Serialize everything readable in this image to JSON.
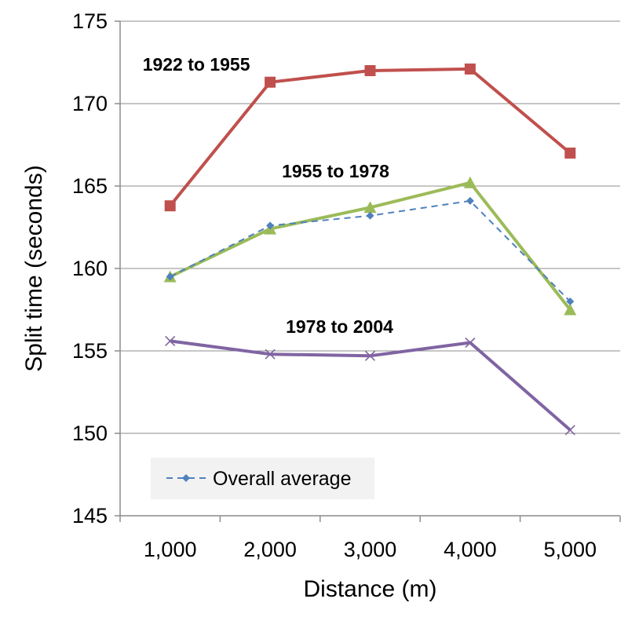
{
  "chart_data": {
    "type": "line",
    "xlabel": "Distance (m)",
    "ylabel": "Split time (seconds)",
    "categories": [
      "1,000",
      "2,000",
      "3,000",
      "4,000",
      "5,000"
    ],
    "ylim": [
      145,
      175
    ],
    "yticks": [
      145,
      150,
      155,
      160,
      165,
      170,
      175
    ],
    "grid": "horizontal",
    "series": [
      {
        "name": "1922 to 1955",
        "values": [
          163.8,
          171.3,
          172.0,
          172.1,
          167.0
        ],
        "color": "#c0504d",
        "marker": "square",
        "dash": false
      },
      {
        "name": "1955 to 1978",
        "values": [
          159.5,
          162.4,
          163.7,
          165.2,
          157.5
        ],
        "color": "#9bbb59",
        "marker": "triangle",
        "dash": false
      },
      {
        "name": "Overall average",
        "values": [
          159.5,
          162.6,
          163.2,
          164.1,
          158.0
        ],
        "color": "#4f81bd",
        "marker": "diamond",
        "dash": true
      },
      {
        "name": "1978 to 2004",
        "values": [
          155.6,
          154.8,
          154.7,
          155.5,
          150.2
        ],
        "color": "#8064a2",
        "marker": "x",
        "dash": false
      }
    ],
    "annotations": [
      "1922 to 1955",
      "1955 to 1978",
      "1978 to 2004"
    ],
    "legend": {
      "entries": [
        "Overall average"
      ],
      "position": "bottom-left"
    }
  }
}
